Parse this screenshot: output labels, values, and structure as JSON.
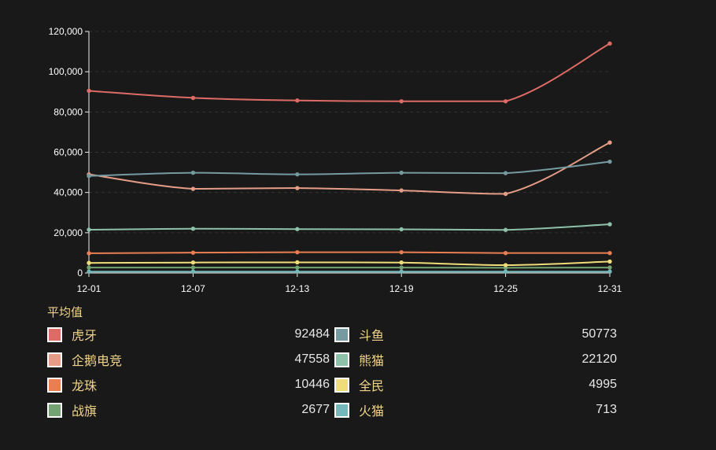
{
  "chart_data": {
    "type": "line",
    "categories": [
      "12-01",
      "12-07",
      "12-13",
      "12-19",
      "12-25",
      "12-31"
    ],
    "ylim": [
      0,
      120000
    ],
    "yticks": [
      "0",
      "20,000",
      "40,000",
      "60,000",
      "80,000",
      "100,000",
      "120,000"
    ],
    "grid": true,
    "series": [
      {
        "name": "虎牙",
        "color": "#dd6b66",
        "values": [
          90500,
          87000,
          85700,
          85300,
          85300,
          114000
        ]
      },
      {
        "name": "斗鱼",
        "color": "#759aa0",
        "values": [
          48200,
          49800,
          49000,
          49800,
          49600,
          55300
        ]
      },
      {
        "name": "企鹅电竞",
        "color": "#e69d87",
        "values": [
          49000,
          41800,
          42200,
          41000,
          39300,
          64800
        ]
      },
      {
        "name": "熊猫",
        "color": "#8dc1a9",
        "values": [
          21500,
          22000,
          21800,
          21700,
          21400,
          24200
        ]
      },
      {
        "name": "龙珠",
        "color": "#ea7e53",
        "values": [
          9800,
          10100,
          10300,
          10300,
          9900,
          9900
        ]
      },
      {
        "name": "全民",
        "color": "#eedd78",
        "values": [
          5000,
          5200,
          5300,
          5200,
          3900,
          5700
        ]
      },
      {
        "name": "战旗",
        "color": "#73a373",
        "values": [
          2700,
          2700,
          2700,
          2700,
          2600,
          2700
        ]
      },
      {
        "name": "火猫",
        "color": "#73b9bc",
        "values": [
          700,
          700,
          700,
          700,
          700,
          700
        ]
      }
    ]
  },
  "legend": {
    "title": "平均值",
    "items": [
      {
        "name": "虎牙",
        "value": "92484",
        "color": "#dd6b66"
      },
      {
        "name": "斗鱼",
        "value": "50773",
        "color": "#759aa0"
      },
      {
        "name": "企鹅电竞",
        "value": "47558",
        "color": "#e69d87"
      },
      {
        "name": "熊猫",
        "value": "22120",
        "color": "#8dc1a9"
      },
      {
        "name": "龙珠",
        "value": "10446",
        "color": "#ea7e53"
      },
      {
        "name": "全民",
        "value": "4995",
        "color": "#eedd78"
      },
      {
        "name": "战旗",
        "value": "2677",
        "color": "#73a373"
      },
      {
        "name": "火猫",
        "value": "713",
        "color": "#73b9bc"
      }
    ]
  }
}
